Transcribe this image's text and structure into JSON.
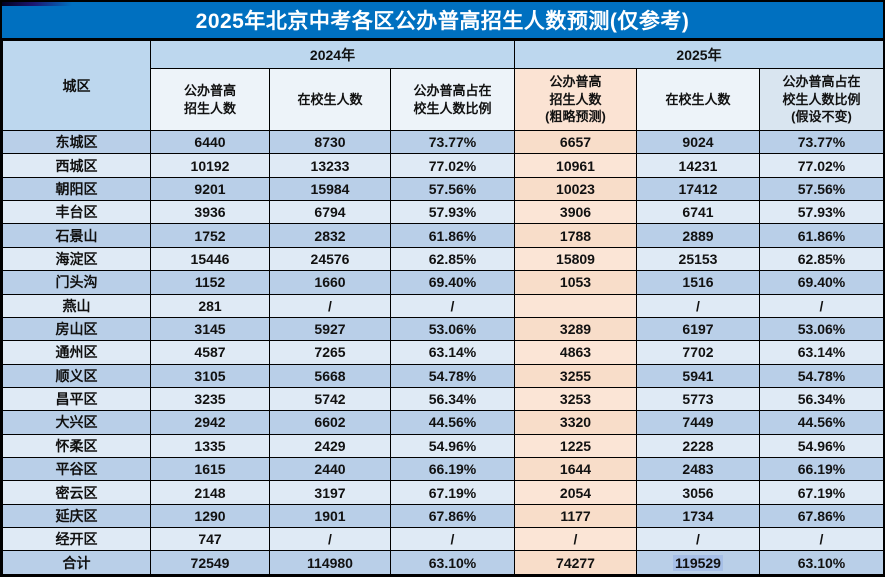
{
  "chart_data": {
    "type": "table",
    "title": "2025年北京中考各区公办普高招生人数预测(仅参考)",
    "corner_header": "城区",
    "year_groups": [
      "2024年",
      "2025年"
    ],
    "columns": [
      "公办普高\n招生人数",
      "在校生人数",
      "公办普高占在\n校生人数比例",
      "公办普高\n招生人数\n(粗略预测)",
      "在校生人数",
      "公办普高占在\n校生人数比例\n(假设不变)"
    ],
    "rows": [
      {
        "district": "东城区",
        "values": [
          "6440",
          "8730",
          "73.77%",
          "6657",
          "9024",
          "73.77%"
        ]
      },
      {
        "district": "西城区",
        "values": [
          "10192",
          "13233",
          "77.02%",
          "10961",
          "14231",
          "77.02%"
        ]
      },
      {
        "district": "朝阳区",
        "values": [
          "9201",
          "15984",
          "57.56%",
          "10023",
          "17412",
          "57.56%"
        ]
      },
      {
        "district": "丰台区",
        "values": [
          "3936",
          "6794",
          "57.93%",
          "3906",
          "6741",
          "57.93%"
        ]
      },
      {
        "district": "石景山",
        "values": [
          "1752",
          "2832",
          "61.86%",
          "1788",
          "2889",
          "61.86%"
        ]
      },
      {
        "district": "海淀区",
        "values": [
          "15446",
          "24576",
          "62.85%",
          "15809",
          "25153",
          "62.85%"
        ]
      },
      {
        "district": "门头沟",
        "values": [
          "1152",
          "1660",
          "69.40%",
          "1053",
          "1516",
          "69.40%"
        ]
      },
      {
        "district": "燕山",
        "values": [
          "281",
          "/",
          "/",
          "",
          "/",
          "/"
        ]
      },
      {
        "district": "房山区",
        "values": [
          "3145",
          "5927",
          "53.06%",
          "3289",
          "6197",
          "53.06%"
        ]
      },
      {
        "district": "通州区",
        "values": [
          "4587",
          "7265",
          "63.14%",
          "4863",
          "7702",
          "63.14%"
        ]
      },
      {
        "district": "顺义区",
        "values": [
          "3105",
          "5668",
          "54.78%",
          "3255",
          "5941",
          "54.78%"
        ]
      },
      {
        "district": "昌平区",
        "values": [
          "3235",
          "5742",
          "56.34%",
          "3253",
          "5773",
          "56.34%"
        ]
      },
      {
        "district": "大兴区",
        "values": [
          "2942",
          "6602",
          "44.56%",
          "3320",
          "7449",
          "44.56%"
        ]
      },
      {
        "district": "怀柔区",
        "values": [
          "1335",
          "2429",
          "54.96%",
          "1225",
          "2228",
          "54.96%"
        ]
      },
      {
        "district": "平谷区",
        "values": [
          "1615",
          "2440",
          "66.19%",
          "1644",
          "2483",
          "66.19%"
        ]
      },
      {
        "district": "密云区",
        "values": [
          "2148",
          "3197",
          "67.19%",
          "2054",
          "3056",
          "67.19%"
        ]
      },
      {
        "district": "延庆区",
        "values": [
          "1290",
          "1901",
          "67.86%",
          "1177",
          "1734",
          "67.86%"
        ]
      },
      {
        "district": "经开区",
        "values": [
          "747",
          "/",
          "/",
          "/",
          "/",
          "/"
        ]
      },
      {
        "district": "合计",
        "values": [
          "72549",
          "114980",
          "63.10%",
          "74277",
          "119529",
          "63.10%"
        ],
        "is_total": true,
        "highlight_col": 4
      }
    ]
  },
  "colors": {
    "title_bar": "#0070c0",
    "title_text": "#ffffff",
    "header_blue": "#bdd7ee",
    "subheader_bg": "#edf3f9",
    "subheader_last_bg": "#d9e5f0",
    "peach_header": "#fbe3d3",
    "row_dark": "#b9cfe8",
    "row_light": "#dfeaf5",
    "peach_dark_row": "#f8ddc9",
    "peach_light_row": "#fbe5d6",
    "selection_highlight": "#a6bfe6",
    "border": "#000000"
  }
}
